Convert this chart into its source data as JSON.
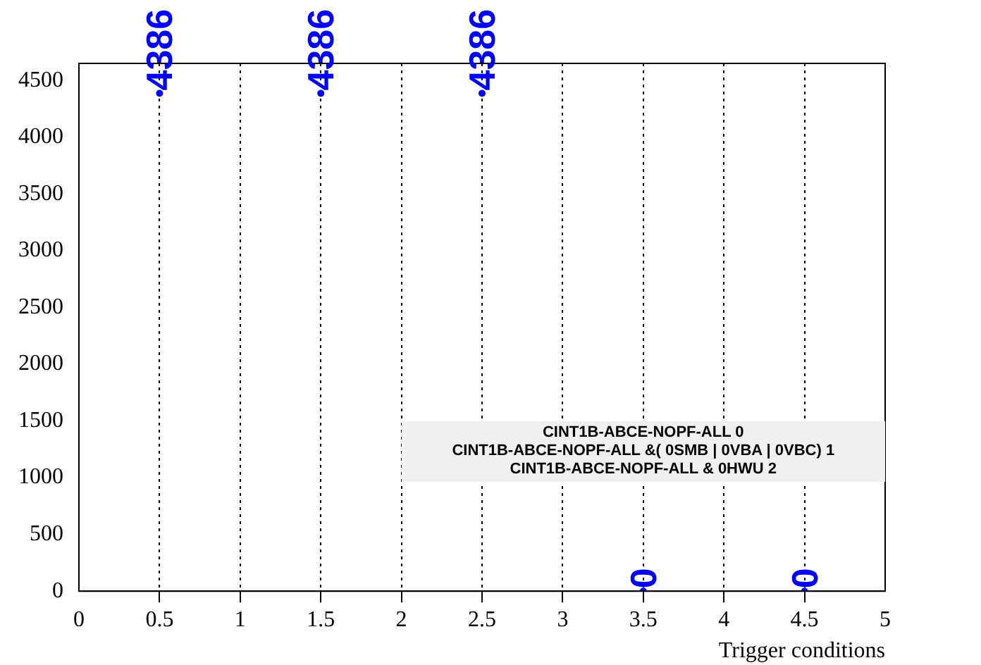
{
  "chart_data": {
    "type": "scatter",
    "xlabel": "Trigger conditions",
    "x": [
      0.5,
      1.5,
      2.5,
      3.5,
      4.5
    ],
    "series": [
      {
        "color": "#0000ff",
        "values": [
          4386,
          4386,
          4386,
          0,
          0
        ]
      }
    ],
    "data_labels": true,
    "xlim": [
      0,
      5
    ],
    "xticks": [
      0,
      0.5,
      1,
      1.5,
      2,
      2.5,
      3,
      3.5,
      4,
      4.5,
      5
    ],
    "ylim": [
      0,
      4650
    ],
    "yticks": [
      0,
      500,
      1000,
      1500,
      2000,
      2500,
      3000,
      3500,
      4000,
      4500
    ],
    "grid": "x",
    "legend": false,
    "annotations": [
      "CINT1B-ABCE-NOPF-ALL 0",
      "CINT1B-ABCE-NOPF-ALL &( 0SMB | 0VBA | 0VBC) 1",
      "CINT1B-ABCE-NOPF-ALL & 0HWU 2"
    ]
  }
}
